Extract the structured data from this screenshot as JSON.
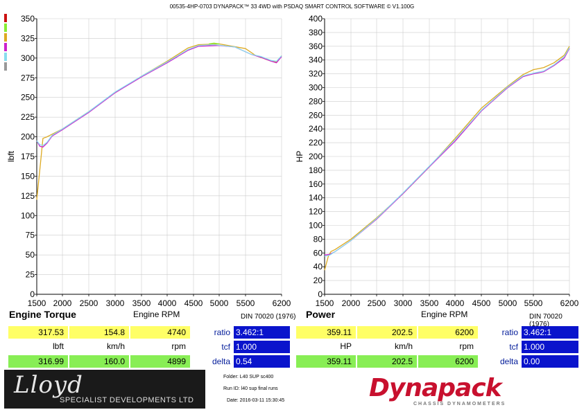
{
  "header": {
    "title": "00535-4HP-0703 DYNAPACK™ 33 4WD with PSDAQ SMART CONTROL SOFTWARE © V1.100G"
  },
  "colors": {
    "run_colors": [
      "#cc1111",
      "#88ee33",
      "#ddaa22",
      "#cc22cc",
      "#88ddee",
      "#999999"
    ],
    "yellow_box": "#ffff66",
    "green_box": "#88ee55",
    "blue_box": "#0a14cc"
  },
  "chart_data": [
    {
      "type": "line",
      "panel_title": "Engine Torque",
      "xlabel": "Engine RPM",
      "ylabel": "lbft",
      "standard": "DIN 70020 (1976)",
      "xlim": [
        1500,
        6200
      ],
      "ylim": [
        0,
        350
      ],
      "x_ticks": [
        "1500",
        "2000",
        "2500",
        "3000",
        "3500",
        "4000",
        "4500",
        "5000",
        "5500",
        "6200"
      ],
      "y_ticks": [
        "0",
        "25",
        "50",
        "75",
        "100",
        "125",
        "150",
        "175",
        "200",
        "225",
        "250",
        "275",
        "300",
        "325",
        "350"
      ],
      "series": [
        {
          "color": "#ddaa22",
          "points": [
            [
              1500,
              120
            ],
            [
              1570,
              165
            ],
            [
              1620,
              198
            ],
            [
              1700,
              200
            ],
            [
              2000,
              210
            ],
            [
              2500,
              232
            ],
            [
              3000,
              256
            ],
            [
              3500,
              277
            ],
            [
              4000,
              296
            ],
            [
              4400,
              313
            ],
            [
              4600,
              317
            ],
            [
              5000,
              318
            ],
            [
              5500,
              312
            ],
            [
              5700,
              303
            ],
            [
              6000,
              296
            ],
            [
              6100,
              295
            ],
            [
              6200,
              303
            ]
          ]
        },
        {
          "color": "#cc22cc",
          "points": [
            [
              1500,
              195
            ],
            [
              1560,
              188
            ],
            [
              1620,
              187
            ],
            [
              1700,
              192
            ],
            [
              1800,
              201
            ],
            [
              2000,
              209
            ],
            [
              2500,
              231
            ],
            [
              3000,
              256
            ],
            [
              3500,
              276
            ],
            [
              4000,
              294
            ],
            [
              4400,
              310
            ],
            [
              4600,
              315
            ],
            [
              5000,
              316
            ],
            [
              5300,
              314
            ],
            [
              5600,
              305
            ],
            [
              5800,
              301
            ],
            [
              6000,
              296
            ],
            [
              6100,
              294
            ],
            [
              6200,
              302
            ]
          ]
        },
        {
          "color": "#88ddee",
          "points": [
            [
              1500,
              195
            ],
            [
              1560,
              190
            ],
            [
              1620,
              189
            ],
            [
              1700,
              193
            ],
            [
              1800,
              202
            ],
            [
              2000,
              210
            ],
            [
              2500,
              232
            ],
            [
              3000,
              257
            ],
            [
              3500,
              277
            ],
            [
              4000,
              295
            ],
            [
              4400,
              311
            ],
            [
              4600,
              316
            ],
            [
              4900,
              317
            ],
            [
              5300,
              314
            ],
            [
              5600,
              305
            ],
            [
              5800,
              302
            ],
            [
              6000,
              297
            ],
            [
              6100,
              296
            ],
            [
              6200,
              303
            ]
          ]
        },
        {
          "color": "#88ee33",
          "points": [
            [
              4800,
              318
            ],
            [
              4900,
              319
            ],
            [
              5000,
              318
            ]
          ]
        }
      ]
    },
    {
      "type": "line",
      "panel_title": "Power",
      "xlabel": "Engine RPM",
      "ylabel": "HP",
      "standard": "DIN 70020 (1976)",
      "xlim": [
        1500,
        6200
      ],
      "ylim": [
        0,
        400
      ],
      "x_ticks": [
        "1500",
        "2000",
        "2500",
        "3000",
        "3500",
        "4000",
        "4500",
        "5000",
        "5500",
        "6200"
      ],
      "y_ticks": [
        "0",
        "20",
        "40",
        "60",
        "80",
        "100",
        "120",
        "140",
        "160",
        "180",
        "200",
        "220",
        "240",
        "260",
        "280",
        "300",
        "320",
        "340",
        "360",
        "380",
        "400"
      ],
      "series": [
        {
          "color": "#ddaa22",
          "points": [
            [
              1500,
              35
            ],
            [
              1570,
              55
            ],
            [
              1620,
              62
            ],
            [
              1700,
              65
            ],
            [
              2000,
              80
            ],
            [
              2500,
              111
            ],
            [
              3000,
              146
            ],
            [
              3500,
              185
            ],
            [
              4000,
              226
            ],
            [
              4500,
              270
            ],
            [
              5000,
              302
            ],
            [
              5300,
              319
            ],
            [
              5500,
              326
            ],
            [
              5700,
              329
            ],
            [
              5900,
              336
            ],
            [
              6100,
              347
            ],
            [
              6200,
              360
            ]
          ]
        },
        {
          "color": "#cc22cc",
          "points": [
            [
              1500,
              57
            ],
            [
              1600,
              58
            ],
            [
              1700,
              62
            ],
            [
              2000,
              78
            ],
            [
              2500,
              109
            ],
            [
              3000,
              146
            ],
            [
              3500,
              185
            ],
            [
              4000,
              222
            ],
            [
              4500,
              266
            ],
            [
              5000,
              300
            ],
            [
              5300,
              316
            ],
            [
              5500,
              320
            ],
            [
              5700,
              323
            ],
            [
              5900,
              332
            ],
            [
              6100,
              343
            ],
            [
              6200,
              357
            ]
          ]
        },
        {
          "color": "#88ddee",
          "points": [
            [
              1500,
              55
            ],
            [
              1600,
              57
            ],
            [
              1700,
              62
            ],
            [
              2000,
              78
            ],
            [
              2500,
              110
            ],
            [
              3000,
              147
            ],
            [
              3500,
              186
            ],
            [
              4000,
              224
            ],
            [
              4500,
              267
            ],
            [
              5000,
              301
            ],
            [
              5300,
              317
            ],
            [
              5500,
              321
            ],
            [
              5700,
              324
            ],
            [
              5900,
              333
            ],
            [
              6100,
              345
            ],
            [
              6200,
              358
            ]
          ]
        }
      ]
    }
  ],
  "left_readout": {
    "row1": [
      "317.53",
      "154.8",
      "4740"
    ],
    "units": [
      "lbft",
      "km/h",
      "rpm"
    ],
    "row3": [
      "316.99",
      "160.0",
      "4899"
    ],
    "ratio_label": "ratio",
    "ratio_value": "3.462:1",
    "tcf_label": "tcf",
    "tcf_value": "1.000",
    "delta_label": "delta",
    "delta_value": "0.54"
  },
  "right_readout": {
    "row1": [
      "359.11",
      "202.5",
      "6200"
    ],
    "units": [
      "HP",
      "km/h",
      "rpm"
    ],
    "row3": [
      "359.11",
      "202.5",
      "6200"
    ],
    "ratio_label": "ratio",
    "ratio_value": "3.462:1",
    "tcf_label": "tcf",
    "tcf_value": "1.000",
    "delta_label": "delta",
    "delta_value": "0.00"
  },
  "footer": {
    "lloyd_name": "Lloyd",
    "lloyd_sub": "SPECIALIST DEVELOPMENTS LTD",
    "folder": "Folder:  L40 SUP sc400",
    "run_id": "Run ID:  l40 sup final runs",
    "date": "Date:  2016-03-11 15:30:45",
    "dynapack_name": "Dynapack",
    "dynapack_sub": "CHASSIS DYNAMOMETERS"
  }
}
